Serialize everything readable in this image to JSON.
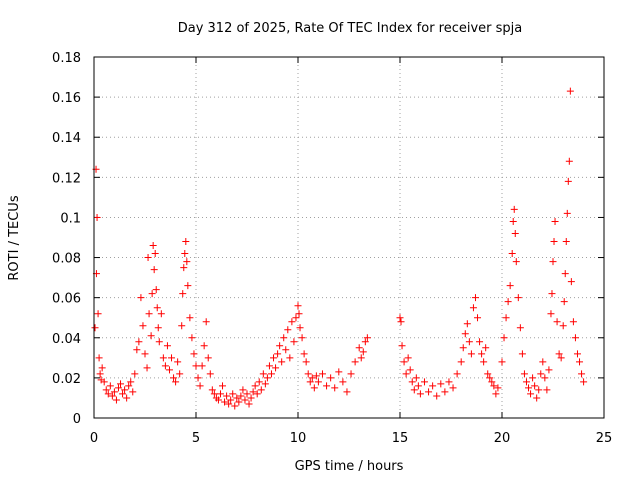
{
  "chart_data": {
    "type": "scatter",
    "title": "Day 312 of 2025, Rate Of TEC Index for receiver spja",
    "xlabel": "GPS time / hours",
    "ylabel": "ROTI / TECUs",
    "xlim": [
      0,
      25
    ],
    "ylim": [
      0,
      0.18
    ],
    "xticks": [
      0,
      5,
      10,
      15,
      20,
      25
    ],
    "yticks": [
      0,
      0.02,
      0.04,
      0.06,
      0.08,
      0.1,
      0.12,
      0.14,
      0.16,
      0.18
    ],
    "xtick_labels": [
      "0",
      "5",
      "10",
      "15",
      "20",
      "25"
    ],
    "ytick_labels": [
      "0",
      "0.02",
      "0.04",
      "0.06",
      "0.08",
      "0.1",
      "0.12",
      "0.14",
      "0.16",
      "0.18"
    ],
    "grid": true,
    "marker": "+",
    "color": "#ff0000",
    "series": [
      {
        "name": "ROTI",
        "points": [
          [
            0.05,
            0.045
          ],
          [
            0.1,
            0.124
          ],
          [
            0.12,
            0.072
          ],
          [
            0.15,
            0.1
          ],
          [
            0.2,
            0.052
          ],
          [
            0.25,
            0.03
          ],
          [
            0.3,
            0.022
          ],
          [
            0.35,
            0.019
          ],
          [
            0.4,
            0.025
          ],
          [
            0.5,
            0.018
          ],
          [
            0.6,
            0.014
          ],
          [
            0.7,
            0.012
          ],
          [
            0.8,
            0.016
          ],
          [
            0.9,
            0.011
          ],
          [
            1.0,
            0.013
          ],
          [
            1.1,
            0.009
          ],
          [
            1.2,
            0.015
          ],
          [
            1.3,
            0.017
          ],
          [
            1.4,
            0.012
          ],
          [
            1.5,
            0.014
          ],
          [
            1.6,
            0.01
          ],
          [
            1.7,
            0.016
          ],
          [
            1.8,
            0.018
          ],
          [
            1.9,
            0.013
          ],
          [
            2.0,
            0.022
          ],
          [
            2.1,
            0.034
          ],
          [
            2.2,
            0.038
          ],
          [
            2.3,
            0.06
          ],
          [
            2.4,
            0.046
          ],
          [
            2.5,
            0.032
          ],
          [
            2.6,
            0.025
          ],
          [
            2.65,
            0.08
          ],
          [
            2.7,
            0.052
          ],
          [
            2.8,
            0.041
          ],
          [
            2.85,
            0.062
          ],
          [
            2.9,
            0.086
          ],
          [
            2.95,
            0.074
          ],
          [
            3.0,
            0.082
          ],
          [
            3.05,
            0.064
          ],
          [
            3.1,
            0.055
          ],
          [
            3.15,
            0.045
          ],
          [
            3.2,
            0.038
          ],
          [
            3.3,
            0.052
          ],
          [
            3.4,
            0.03
          ],
          [
            3.5,
            0.026
          ],
          [
            3.6,
            0.036
          ],
          [
            3.7,
            0.024
          ],
          [
            3.8,
            0.03
          ],
          [
            3.9,
            0.02
          ],
          [
            4.0,
            0.018
          ],
          [
            4.1,
            0.028
          ],
          [
            4.2,
            0.022
          ],
          [
            4.3,
            0.046
          ],
          [
            4.35,
            0.062
          ],
          [
            4.4,
            0.075
          ],
          [
            4.45,
            0.082
          ],
          [
            4.5,
            0.088
          ],
          [
            4.55,
            0.078
          ],
          [
            4.6,
            0.066
          ],
          [
            4.7,
            0.05
          ],
          [
            4.8,
            0.04
          ],
          [
            4.9,
            0.032
          ],
          [
            5.0,
            0.026
          ],
          [
            5.1,
            0.02
          ],
          [
            5.2,
            0.016
          ],
          [
            5.3,
            0.026
          ],
          [
            5.4,
            0.036
          ],
          [
            5.5,
            0.048
          ],
          [
            5.6,
            0.03
          ],
          [
            5.7,
            0.022
          ],
          [
            5.8,
            0.014
          ],
          [
            5.9,
            0.012
          ],
          [
            6.0,
            0.01
          ],
          [
            6.1,
            0.009
          ],
          [
            6.2,
            0.012
          ],
          [
            6.3,
            0.016
          ],
          [
            6.4,
            0.008
          ],
          [
            6.5,
            0.011
          ],
          [
            6.6,
            0.007
          ],
          [
            6.7,
            0.009
          ],
          [
            6.8,
            0.012
          ],
          [
            6.9,
            0.006
          ],
          [
            7.0,
            0.01
          ],
          [
            7.1,
            0.008
          ],
          [
            7.2,
            0.011
          ],
          [
            7.3,
            0.014
          ],
          [
            7.4,
            0.009
          ],
          [
            7.5,
            0.012
          ],
          [
            7.6,
            0.007
          ],
          [
            7.7,
            0.01
          ],
          [
            7.8,
            0.013
          ],
          [
            7.9,
            0.016
          ],
          [
            8.0,
            0.012
          ],
          [
            8.1,
            0.018
          ],
          [
            8.2,
            0.014
          ],
          [
            8.3,
            0.022
          ],
          [
            8.4,
            0.017
          ],
          [
            8.5,
            0.02
          ],
          [
            8.6,
            0.026
          ],
          [
            8.7,
            0.022
          ],
          [
            8.8,
            0.03
          ],
          [
            8.9,
            0.025
          ],
          [
            9.0,
            0.032
          ],
          [
            9.1,
            0.036
          ],
          [
            9.2,
            0.028
          ],
          [
            9.3,
            0.04
          ],
          [
            9.4,
            0.034
          ],
          [
            9.5,
            0.044
          ],
          [
            9.6,
            0.03
          ],
          [
            9.7,
            0.048
          ],
          [
            9.8,
            0.038
          ],
          [
            9.9,
            0.05
          ],
          [
            10.0,
            0.056
          ],
          [
            10.05,
            0.052
          ],
          [
            10.1,
            0.045
          ],
          [
            10.2,
            0.04
          ],
          [
            10.3,
            0.032
          ],
          [
            10.4,
            0.028
          ],
          [
            10.5,
            0.022
          ],
          [
            10.6,
            0.018
          ],
          [
            10.7,
            0.02
          ],
          [
            10.8,
            0.015
          ],
          [
            10.9,
            0.021
          ],
          [
            11.0,
            0.018
          ],
          [
            11.2,
            0.022
          ],
          [
            11.4,
            0.016
          ],
          [
            11.6,
            0.02
          ],
          [
            11.8,
            0.015
          ],
          [
            12.0,
            0.023
          ],
          [
            12.2,
            0.018
          ],
          [
            12.4,
            0.013
          ],
          [
            12.6,
            0.022
          ],
          [
            12.8,
            0.028
          ],
          [
            13.0,
            0.035
          ],
          [
            13.1,
            0.03
          ],
          [
            13.2,
            0.033
          ],
          [
            13.3,
            0.038
          ],
          [
            13.4,
            0.04
          ],
          [
            15.0,
            0.05
          ],
          [
            15.05,
            0.048
          ],
          [
            15.1,
            0.036
          ],
          [
            15.2,
            0.028
          ],
          [
            15.3,
            0.022
          ],
          [
            15.4,
            0.03
          ],
          [
            15.5,
            0.024
          ],
          [
            15.6,
            0.018
          ],
          [
            15.7,
            0.014
          ],
          [
            15.8,
            0.02
          ],
          [
            15.9,
            0.016
          ],
          [
            16.0,
            0.012
          ],
          [
            16.2,
            0.018
          ],
          [
            16.4,
            0.013
          ],
          [
            16.6,
            0.016
          ],
          [
            16.8,
            0.011
          ],
          [
            17.0,
            0.017
          ],
          [
            17.2,
            0.013
          ],
          [
            17.4,
            0.018
          ],
          [
            17.6,
            0.015
          ],
          [
            17.8,
            0.022
          ],
          [
            18.0,
            0.028
          ],
          [
            18.1,
            0.035
          ],
          [
            18.2,
            0.042
          ],
          [
            18.3,
            0.047
          ],
          [
            18.4,
            0.038
          ],
          [
            18.5,
            0.032
          ],
          [
            18.6,
            0.055
          ],
          [
            18.7,
            0.06
          ],
          [
            18.8,
            0.05
          ],
          [
            18.9,
            0.038
          ],
          [
            19.0,
            0.032
          ],
          [
            19.1,
            0.028
          ],
          [
            19.2,
            0.035
          ],
          [
            19.3,
            0.022
          ],
          [
            19.4,
            0.02
          ],
          [
            19.5,
            0.018
          ],
          [
            19.6,
            0.016
          ],
          [
            19.7,
            0.012
          ],
          [
            19.8,
            0.015
          ],
          [
            20.0,
            0.028
          ],
          [
            20.1,
            0.04
          ],
          [
            20.2,
            0.05
          ],
          [
            20.3,
            0.058
          ],
          [
            20.4,
            0.066
          ],
          [
            20.5,
            0.082
          ],
          [
            20.55,
            0.098
          ],
          [
            20.6,
            0.104
          ],
          [
            20.65,
            0.092
          ],
          [
            20.7,
            0.078
          ],
          [
            20.8,
            0.06
          ],
          [
            20.9,
            0.045
          ],
          [
            21.0,
            0.032
          ],
          [
            21.1,
            0.022
          ],
          [
            21.2,
            0.018
          ],
          [
            21.3,
            0.015
          ],
          [
            21.4,
            0.012
          ],
          [
            21.5,
            0.02
          ],
          [
            21.6,
            0.016
          ],
          [
            21.7,
            0.01
          ],
          [
            21.8,
            0.014
          ],
          [
            21.9,
            0.022
          ],
          [
            22.0,
            0.028
          ],
          [
            22.1,
            0.02
          ],
          [
            22.2,
            0.014
          ],
          [
            22.3,
            0.024
          ],
          [
            22.4,
            0.052
          ],
          [
            22.45,
            0.062
          ],
          [
            22.5,
            0.078
          ],
          [
            22.55,
            0.088
          ],
          [
            22.6,
            0.098
          ],
          [
            22.7,
            0.048
          ],
          [
            22.8,
            0.032
          ],
          [
            22.9,
            0.03
          ],
          [
            23.0,
            0.046
          ],
          [
            23.05,
            0.058
          ],
          [
            23.1,
            0.072
          ],
          [
            23.15,
            0.088
          ],
          [
            23.2,
            0.102
          ],
          [
            23.25,
            0.118
          ],
          [
            23.3,
            0.128
          ],
          [
            23.35,
            0.163
          ],
          [
            23.4,
            0.068
          ],
          [
            23.5,
            0.048
          ],
          [
            23.6,
            0.04
          ],
          [
            23.7,
            0.032
          ],
          [
            23.8,
            0.028
          ],
          [
            23.9,
            0.022
          ],
          [
            24.0,
            0.018
          ]
        ]
      }
    ]
  }
}
